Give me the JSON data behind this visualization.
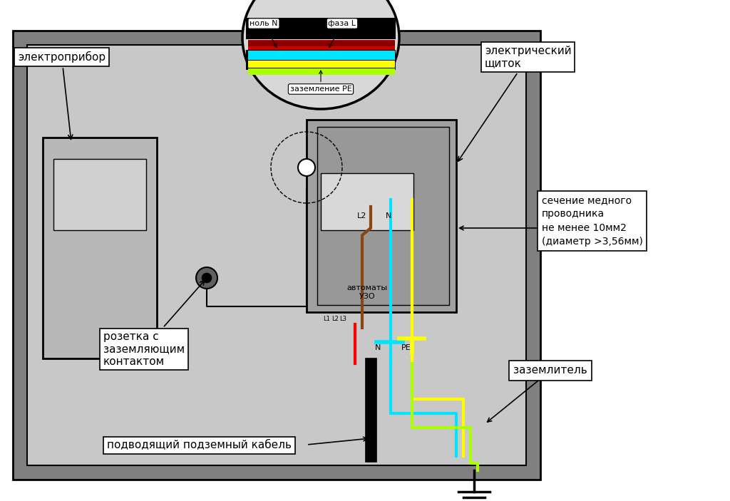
{
  "bg_color": "#f0f0f0",
  "outer_wall_color": "#808080",
  "inner_wall_color": "#c8c8c8",
  "boiler_color": "#b0b0b0",
  "panel_color": "#a0a0a0",
  "white": "#ffffff",
  "black": "#000000",
  "cyan": "#00e5ff",
  "yellow": "#ffff00",
  "yellow_green": "#aaff00",
  "red": "#ff0000",
  "brown": "#8B4513",
  "dark_red": "#8B0000",
  "blue": "#0000cc",
  "labels": {
    "electrodevice": "электроприбор",
    "electric_panel": "электрический\nщиток",
    "null_N": "ноль N",
    "phase_L": "фаза L",
    "ground_PE": "заземление PE",
    "socket": "розетка с\nзаземляющим\nконтактом",
    "cable": "подводящий подземный кабель",
    "conductor": "сечение медного\nпроводника\nне менее 10мм2\n(диаметр >3,56мм)",
    "grounding": "заземлитель",
    "automaty": "автоматы\nУЗО"
  }
}
